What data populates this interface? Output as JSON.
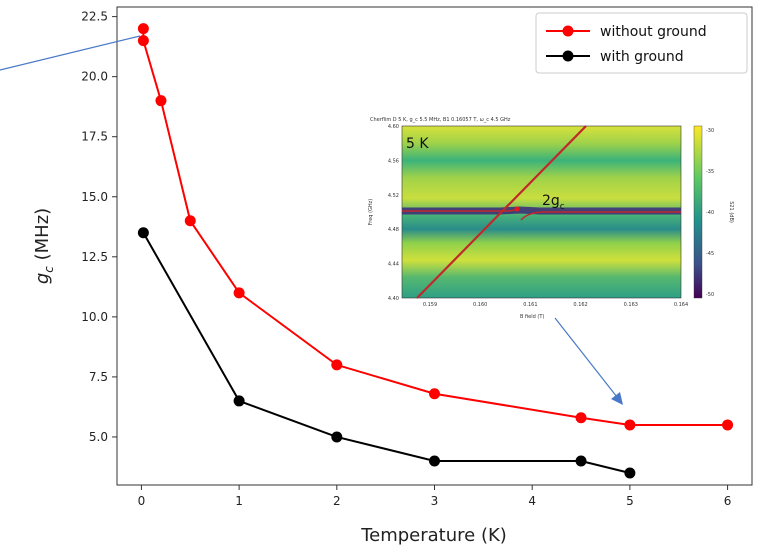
{
  "chart_data": {
    "type": "line",
    "xlabel": "Temperature (K)",
    "ylabel_main": "g",
    "ylabel_sub": "c",
    "ylabel_tail": " (MHz)",
    "xlim": [
      -0.25,
      6.25
    ],
    "ylim": [
      3.0,
      22.9
    ],
    "xticks": [
      0,
      1,
      2,
      3,
      4,
      5,
      6
    ],
    "yticks": [
      5.0,
      7.5,
      10.0,
      12.5,
      15.0,
      17.5,
      20.0,
      22.5
    ],
    "ytick_labels": [
      "5.0",
      "7.5",
      "10.0",
      "12.5",
      "15.0",
      "17.5",
      "20.0",
      "22.5"
    ],
    "legend_position": "top-right",
    "series": [
      {
        "name": "without ground",
        "color": "#ff0000",
        "x": [
          0.02,
          0.02,
          0.2,
          0.5,
          1,
          2,
          3,
          4.5,
          5,
          6
        ],
        "y": [
          22.0,
          21.5,
          19.0,
          14.0,
          11.0,
          8.0,
          6.8,
          5.8,
          5.5,
          5.5
        ]
      },
      {
        "name": "with ground",
        "color": "#000000",
        "x": [
          0.02,
          1,
          2,
          3,
          4.5,
          5
        ],
        "y": [
          13.5,
          6.5,
          5.0,
          4.0,
          4.0,
          3.5
        ]
      }
    ],
    "inset": {
      "label": "5 K",
      "annotation_main": "2g",
      "annotation_sub": "c",
      "title": "Cherflim D 5 K, g_c 5.5 MHz, B1 0.16057 T, ω_c 4.5 GHz",
      "xlabel": "B field (T)",
      "ylabel": "Freq (GHz)",
      "x_ticks": [
        "0.159",
        "0.160",
        "0.161",
        "0.162",
        "0.163",
        "0.164"
      ],
      "y_ticks": [
        "4.60",
        "4.56",
        "4.52",
        "4.48",
        "4.44",
        "4.40"
      ],
      "colorbar_ticks": [
        "-30",
        "-35",
        "-40",
        "-45",
        "-50"
      ],
      "colorbar_label": "S21 (dB)"
    }
  }
}
